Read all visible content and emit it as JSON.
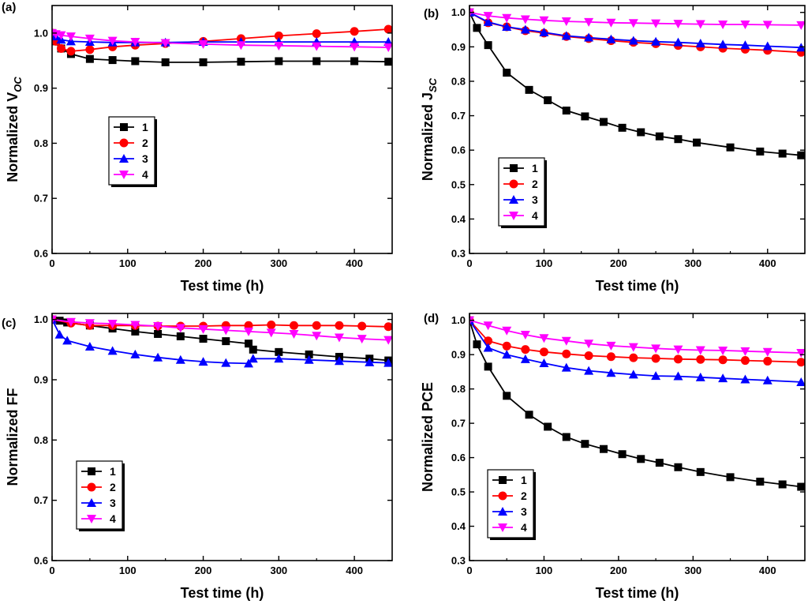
{
  "figure": {
    "series_colors": [
      "#000000",
      "#ff0000",
      "#0000ff",
      "#ff00ff"
    ],
    "series_markers": [
      "square",
      "circle",
      "triangle-up",
      "triangle-down"
    ]
  },
  "chart_data": [
    {
      "type": "line",
      "panel_label": "(a)",
      "xlabel": "Test time (h)",
      "ylabel": "Normalized V",
      "ylabel_sub": "OC",
      "xlim": [
        0,
        450
      ],
      "ylim": [
        0.6,
        1.05
      ],
      "xticks": [
        0,
        100,
        200,
        300,
        400
      ],
      "yticks": [
        0.6,
        0.7,
        0.8,
        0.9,
        1.0
      ],
      "ytick_decimals": 1,
      "legend": {
        "labels": [
          "1",
          "2",
          "3",
          "4"
        ],
        "placement": "middle-left"
      },
      "series": [
        {
          "name": "1",
          "x": [
            0,
            5,
            12,
            25,
            50,
            80,
            110,
            150,
            200,
            250,
            300,
            350,
            400,
            445
          ],
          "y": [
            1.0,
            0.985,
            0.972,
            0.962,
            0.953,
            0.951,
            0.949,
            0.947,
            0.947,
            0.948,
            0.949,
            0.949,
            0.949,
            0.948
          ]
        },
        {
          "name": "2",
          "x": [
            0,
            5,
            12,
            25,
            50,
            80,
            110,
            150,
            200,
            250,
            300,
            350,
            400,
            445
          ],
          "y": [
            1.0,
            0.985,
            0.972,
            0.967,
            0.97,
            0.975,
            0.978,
            0.981,
            0.985,
            0.99,
            0.995,
            0.999,
            1.003,
            1.007
          ]
        },
        {
          "name": "3",
          "x": [
            0,
            5,
            12,
            25,
            50,
            80,
            110,
            150,
            200,
            250,
            300,
            350,
            400,
            445
          ],
          "y": [
            1.0,
            0.994,
            0.988,
            0.985,
            0.984,
            0.983,
            0.983,
            0.983,
            0.984,
            0.984,
            0.984,
            0.984,
            0.984,
            0.984
          ]
        },
        {
          "name": "4",
          "x": [
            0,
            5,
            12,
            25,
            50,
            80,
            110,
            150,
            200,
            250,
            300,
            350,
            400,
            445
          ],
          "y": [
            1.0,
            0.998,
            0.996,
            0.994,
            0.99,
            0.986,
            0.984,
            0.982,
            0.98,
            0.978,
            0.977,
            0.976,
            0.975,
            0.974
          ]
        }
      ]
    },
    {
      "type": "line",
      "panel_label": "(b)",
      "xlabel": "Test time (h)",
      "ylabel": "Normalized J",
      "ylabel_sub": "SC",
      "xlim": [
        0,
        450
      ],
      "ylim": [
        0.3,
        1.02
      ],
      "xticks": [
        0,
        100,
        200,
        300,
        400
      ],
      "yticks": [
        0.3,
        0.4,
        0.5,
        0.6,
        0.7,
        0.8,
        0.9,
        1.0
      ],
      "ytick_decimals": 1,
      "legend": {
        "labels": [
          "1",
          "2",
          "3",
          "4"
        ],
        "placement": "bottom-left"
      },
      "series": [
        {
          "name": "1",
          "x": [
            0,
            10,
            25,
            50,
            80,
            105,
            130,
            155,
            180,
            205,
            230,
            255,
            280,
            305,
            350,
            390,
            420,
            445
          ],
          "y": [
            1.0,
            0.955,
            0.905,
            0.825,
            0.775,
            0.745,
            0.715,
            0.698,
            0.682,
            0.665,
            0.652,
            0.64,
            0.632,
            0.622,
            0.608,
            0.596,
            0.59,
            0.585
          ]
        },
        {
          "name": "2",
          "x": [
            0,
            25,
            50,
            75,
            100,
            130,
            160,
            190,
            220,
            250,
            280,
            310,
            340,
            370,
            400,
            445
          ],
          "y": [
            1.0,
            0.97,
            0.958,
            0.947,
            0.94,
            0.93,
            0.924,
            0.918,
            0.913,
            0.909,
            0.904,
            0.9,
            0.896,
            0.893,
            0.89,
            0.884
          ]
        },
        {
          "name": "3",
          "x": [
            0,
            25,
            50,
            75,
            100,
            130,
            160,
            190,
            220,
            250,
            280,
            310,
            340,
            370,
            400,
            445
          ],
          "y": [
            1.0,
            0.972,
            0.958,
            0.95,
            0.942,
            0.932,
            0.927,
            0.922,
            0.918,
            0.915,
            0.913,
            0.91,
            0.907,
            0.905,
            0.902,
            0.898
          ]
        },
        {
          "name": "4",
          "x": [
            0,
            25,
            50,
            75,
            100,
            130,
            160,
            190,
            220,
            250,
            280,
            310,
            340,
            370,
            400,
            445
          ],
          "y": [
            1.0,
            0.99,
            0.984,
            0.98,
            0.977,
            0.974,
            0.972,
            0.97,
            0.969,
            0.968,
            0.967,
            0.966,
            0.965,
            0.965,
            0.964,
            0.963
          ]
        }
      ]
    },
    {
      "type": "line",
      "panel_label": "(c)",
      "xlabel": "Test time (h)",
      "ylabel": "Normalized FF",
      "ylabel_sub": "",
      "xlim": [
        0,
        450
      ],
      "ylim": [
        0.6,
        1.01
      ],
      "xticks": [
        0,
        100,
        200,
        300,
        400
      ],
      "yticks": [
        0.6,
        0.7,
        0.8,
        0.9,
        1.0
      ],
      "ytick_decimals": 1,
      "legend": {
        "labels": [
          "1",
          "2",
          "3",
          "4"
        ],
        "placement": "bottom-left"
      },
      "series": [
        {
          "name": "1",
          "x": [
            0,
            10,
            20,
            50,
            80,
            110,
            140,
            170,
            200,
            230,
            260,
            266,
            300,
            340,
            380,
            420,
            445
          ],
          "y": [
            1.0,
            0.998,
            0.995,
            0.99,
            0.985,
            0.98,
            0.976,
            0.972,
            0.968,
            0.964,
            0.96,
            0.95,
            0.946,
            0.942,
            0.938,
            0.935,
            0.932
          ]
        },
        {
          "name": "2",
          "x": [
            0,
            25,
            50,
            80,
            110,
            140,
            170,
            200,
            230,
            260,
            290,
            320,
            350,
            380,
            410,
            445
          ],
          "y": [
            1.0,
            0.994,
            0.99,
            0.99,
            0.99,
            0.989,
            0.989,
            0.989,
            0.99,
            0.99,
            0.991,
            0.99,
            0.99,
            0.99,
            0.989,
            0.988
          ]
        },
        {
          "name": "3",
          "x": [
            0,
            10,
            20,
            50,
            80,
            110,
            140,
            170,
            200,
            230,
            260,
            266,
            300,
            340,
            380,
            420,
            445
          ],
          "y": [
            1.0,
            0.975,
            0.965,
            0.955,
            0.948,
            0.942,
            0.937,
            0.933,
            0.93,
            0.928,
            0.927,
            0.935,
            0.935,
            0.933,
            0.931,
            0.929,
            0.928
          ]
        },
        {
          "name": "4",
          "x": [
            0,
            25,
            50,
            80,
            110,
            140,
            170,
            200,
            230,
            260,
            290,
            320,
            350,
            380,
            410,
            445
          ],
          "y": [
            1.0,
            0.996,
            0.994,
            0.993,
            0.991,
            0.989,
            0.986,
            0.984,
            0.982,
            0.98,
            0.978,
            0.976,
            0.973,
            0.97,
            0.968,
            0.966
          ]
        }
      ]
    },
    {
      "type": "line",
      "panel_label": "(d)",
      "xlabel": "Test time (h)",
      "ylabel": "Normalized PCE",
      "ylabel_sub": "",
      "xlim": [
        0,
        450
      ],
      "ylim": [
        0.3,
        1.02
      ],
      "xticks": [
        0,
        100,
        200,
        300,
        400
      ],
      "yticks": [
        0.3,
        0.4,
        0.5,
        0.6,
        0.7,
        0.8,
        0.9,
        1.0
      ],
      "ytick_decimals": 1,
      "legend": {
        "labels": [
          "1",
          "2",
          "3",
          "4"
        ],
        "placement": "bottom-left"
      },
      "series": [
        {
          "name": "1",
          "x": [
            0,
            10,
            25,
            50,
            80,
            105,
            130,
            155,
            180,
            205,
            230,
            255,
            280,
            310,
            350,
            390,
            420,
            445
          ],
          "y": [
            1.0,
            0.93,
            0.865,
            0.78,
            0.725,
            0.69,
            0.66,
            0.64,
            0.625,
            0.61,
            0.596,
            0.585,
            0.572,
            0.558,
            0.543,
            0.53,
            0.522,
            0.515
          ]
        },
        {
          "name": "2",
          "x": [
            0,
            25,
            50,
            75,
            100,
            130,
            160,
            190,
            220,
            250,
            280,
            310,
            340,
            370,
            400,
            445
          ],
          "y": [
            1.0,
            0.94,
            0.925,
            0.915,
            0.908,
            0.902,
            0.897,
            0.894,
            0.891,
            0.889,
            0.887,
            0.886,
            0.885,
            0.883,
            0.881,
            0.878
          ]
        },
        {
          "name": "3",
          "x": [
            0,
            25,
            50,
            75,
            100,
            130,
            160,
            190,
            220,
            250,
            280,
            310,
            340,
            370,
            400,
            445
          ],
          "y": [
            1.0,
            0.92,
            0.9,
            0.887,
            0.875,
            0.862,
            0.853,
            0.847,
            0.842,
            0.838,
            0.837,
            0.834,
            0.831,
            0.828,
            0.825,
            0.82
          ]
        },
        {
          "name": "4",
          "x": [
            0,
            25,
            50,
            75,
            100,
            130,
            160,
            190,
            220,
            250,
            280,
            310,
            340,
            370,
            400,
            445
          ],
          "y": [
            1.0,
            0.985,
            0.97,
            0.958,
            0.948,
            0.94,
            0.932,
            0.926,
            0.922,
            0.918,
            0.915,
            0.913,
            0.912,
            0.91,
            0.908,
            0.905
          ]
        }
      ]
    }
  ]
}
